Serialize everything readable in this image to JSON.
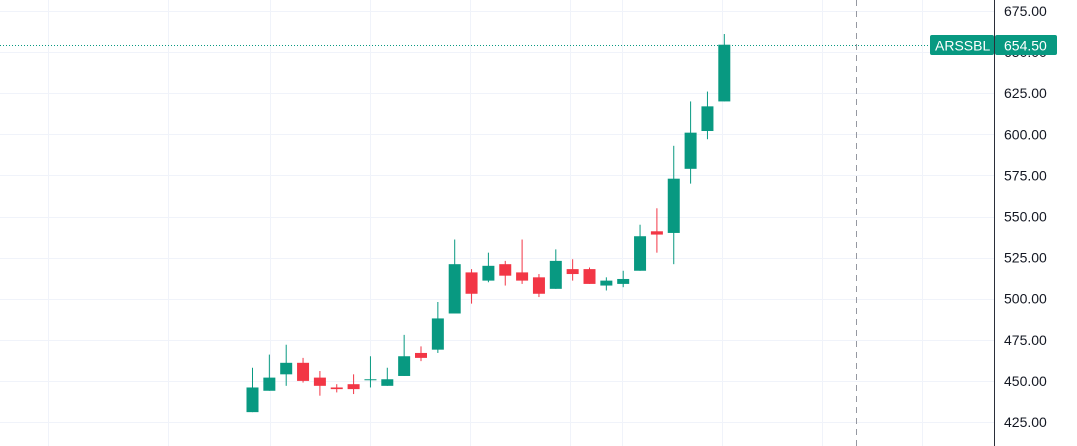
{
  "chart_data": {
    "type": "candlestick",
    "symbol": "ARSSBL",
    "last_price_label": "654.50",
    "last_price": 654.5,
    "ylim": [
      415,
      680
    ],
    "y_ticks": [
      {
        "value": 425,
        "label": "425.00"
      },
      {
        "value": 450,
        "label": "450.00"
      },
      {
        "value": 475,
        "label": "475.00"
      },
      {
        "value": 500,
        "label": "500.00"
      },
      {
        "value": 525,
        "label": "525.00"
      },
      {
        "value": 550,
        "label": "550.00"
      },
      {
        "value": 575,
        "label": "575.00"
      },
      {
        "value": 600,
        "label": "600.00"
      },
      {
        "value": 625,
        "label": "625.00"
      },
      {
        "value": 650,
        "label": "650.00"
      },
      {
        "value": 675,
        "label": "675.00"
      }
    ],
    "grid": true,
    "colors": {
      "up": "#089981",
      "down": "#f23645",
      "grid": "#f0f3fa",
      "axis_line": "#2a2e39",
      "price_line": "#089981",
      "crosshair": "#9598a1"
    },
    "candles": [
      {
        "o": 431,
        "h": 458,
        "l": 431,
        "c": 446
      },
      {
        "o": 444,
        "h": 466,
        "l": 444,
        "c": 452
      },
      {
        "o": 454,
        "h": 472,
        "l": 447,
        "c": 461
      },
      {
        "o": 461,
        "h": 464,
        "l": 449,
        "c": 450
      },
      {
        "o": 452,
        "h": 456,
        "l": 441,
        "c": 447
      },
      {
        "o": 446,
        "h": 448,
        "l": 443,
        "c": 445
      },
      {
        "o": 448,
        "h": 454,
        "l": 442,
        "c": 445
      },
      {
        "o": 451,
        "h": 465,
        "l": 446,
        "c": 451
      },
      {
        "o": 447,
        "h": 458,
        "l": 447,
        "c": 451
      },
      {
        "o": 453,
        "h": 478,
        "l": 453,
        "c": 465
      },
      {
        "o": 467,
        "h": 471,
        "l": 462,
        "c": 464
      },
      {
        "o": 469,
        "h": 498,
        "l": 467,
        "c": 488
      },
      {
        "o": 491,
        "h": 536,
        "l": 491,
        "c": 521
      },
      {
        "o": 516,
        "h": 518,
        "l": 497,
        "c": 503
      },
      {
        "o": 511,
        "h": 528,
        "l": 510,
        "c": 520
      },
      {
        "o": 521,
        "h": 523,
        "l": 508,
        "c": 514
      },
      {
        "o": 516,
        "h": 536,
        "l": 509,
        "c": 511
      },
      {
        "o": 513,
        "h": 515,
        "l": 501,
        "c": 503
      },
      {
        "o": 506,
        "h": 530,
        "l": 506,
        "c": 523
      },
      {
        "o": 518,
        "h": 524,
        "l": 511,
        "c": 515
      },
      {
        "o": 518,
        "h": 519,
        "l": 509,
        "c": 509
      },
      {
        "o": 508,
        "h": 513,
        "l": 505,
        "c": 511
      },
      {
        "o": 509,
        "h": 517,
        "l": 507,
        "c": 512
      },
      {
        "o": 517,
        "h": 545,
        "l": 517,
        "c": 538
      },
      {
        "o": 541,
        "h": 555,
        "l": 528,
        "c": 539
      },
      {
        "o": 540,
        "h": 593,
        "l": 521,
        "c": 573
      },
      {
        "o": 579,
        "h": 620,
        "l": 570,
        "c": 601
      },
      {
        "o": 602,
        "h": 626,
        "l": 597,
        "c": 617
      },
      {
        "o": 620,
        "h": 661,
        "l": 620,
        "c": 654.5
      }
    ]
  }
}
